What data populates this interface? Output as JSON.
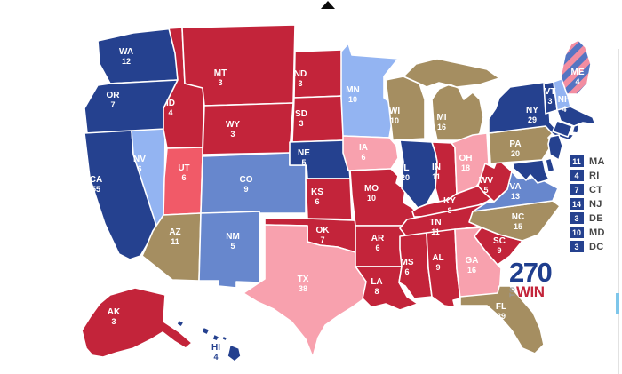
{
  "palette": {
    "safe_dem": "#25418f",
    "likely_dem": "#6787cd",
    "lean_dem": "#93b4f2",
    "tossup": "#a58e61",
    "lean_rep": "#f8a1ae",
    "likely_rep": "#f15a68",
    "safe_rep": "#c3243a",
    "split_stripe_blue": "#5575c2",
    "split_stripe_pink": "#f28da1",
    "state_label_text": "#ffffff",
    "hawaii_label_text": "#25418f",
    "sidebar_label_text": "#454545",
    "logo_blue": "#1f3e8e",
    "logo_red": "#c3243a",
    "logo_gray": "#9a9a9a"
  },
  "scroll_arrow": {
    "name": "scroll-up"
  },
  "map": {
    "states": [
      {
        "abbr": "WA",
        "votes": "12",
        "status": "safe_dem"
      },
      {
        "abbr": "OR",
        "votes": "7",
        "status": "safe_dem"
      },
      {
        "abbr": "CA",
        "votes": "55",
        "status": "safe_dem"
      },
      {
        "abbr": "NV",
        "votes": "6",
        "status": "lean_dem"
      },
      {
        "abbr": "ID",
        "votes": "4",
        "status": "safe_rep"
      },
      {
        "abbr": "MT",
        "votes": "3",
        "status": "safe_rep"
      },
      {
        "abbr": "WY",
        "votes": "3",
        "status": "safe_rep"
      },
      {
        "abbr": "UT",
        "votes": "6",
        "status": "likely_rep"
      },
      {
        "abbr": "CO",
        "votes": "9",
        "status": "likely_dem"
      },
      {
        "abbr": "AZ",
        "votes": "11",
        "status": "tossup"
      },
      {
        "abbr": "NM",
        "votes": "5",
        "status": "likely_dem"
      },
      {
        "abbr": "ND",
        "votes": "3",
        "status": "safe_rep"
      },
      {
        "abbr": "SD",
        "votes": "3",
        "status": "safe_rep"
      },
      {
        "abbr": "NE",
        "votes": "5",
        "status": "safe_dem"
      },
      {
        "abbr": "KS",
        "votes": "6",
        "status": "safe_rep"
      },
      {
        "abbr": "OK",
        "votes": "7",
        "status": "safe_rep"
      },
      {
        "abbr": "TX",
        "votes": "38",
        "status": "lean_rep"
      },
      {
        "abbr": "MN",
        "votes": "10",
        "status": "lean_dem"
      },
      {
        "abbr": "IA",
        "votes": "6",
        "status": "lean_rep"
      },
      {
        "abbr": "MO",
        "votes": "10",
        "status": "safe_rep"
      },
      {
        "abbr": "AR",
        "votes": "6",
        "status": "safe_rep"
      },
      {
        "abbr": "LA",
        "votes": "8",
        "status": "safe_rep"
      },
      {
        "abbr": "WI",
        "votes": "10",
        "status": "tossup"
      },
      {
        "abbr": "MI",
        "votes": "16",
        "status": "tossup"
      },
      {
        "abbr": "IL",
        "votes": "20",
        "status": "safe_dem"
      },
      {
        "abbr": "IN",
        "votes": "11",
        "status": "safe_rep"
      },
      {
        "abbr": "OH",
        "votes": "18",
        "status": "lean_rep"
      },
      {
        "abbr": "KY",
        "votes": "8",
        "status": "safe_rep"
      },
      {
        "abbr": "TN",
        "votes": "11",
        "status": "safe_rep"
      },
      {
        "abbr": "MS",
        "votes": "6",
        "status": "safe_rep"
      },
      {
        "abbr": "AL",
        "votes": "9",
        "status": "safe_rep"
      },
      {
        "abbr": "GA",
        "votes": "16",
        "status": "lean_rep"
      },
      {
        "abbr": "SC",
        "votes": "9",
        "status": "safe_rep"
      },
      {
        "abbr": "NC",
        "votes": "15",
        "status": "tossup"
      },
      {
        "abbr": "VA",
        "votes": "13",
        "status": "likely_dem"
      },
      {
        "abbr": "WV",
        "votes": "5",
        "status": "safe_rep"
      },
      {
        "abbr": "PA",
        "votes": "20",
        "status": "tossup"
      },
      {
        "abbr": "NY",
        "votes": "29",
        "status": "safe_dem"
      },
      {
        "abbr": "VT",
        "votes": "3",
        "status": "safe_dem"
      },
      {
        "abbr": "NH",
        "votes": "4",
        "status": "lean_dem"
      },
      {
        "abbr": "ME",
        "votes": "4",
        "status": "split"
      },
      {
        "abbr": "MA",
        "votes": "11",
        "status": "safe_dem"
      },
      {
        "abbr": "RI",
        "votes": "4",
        "status": "safe_dem"
      },
      {
        "abbr": "CT",
        "votes": "7",
        "status": "safe_dem"
      },
      {
        "abbr": "NJ",
        "votes": "14",
        "status": "safe_dem"
      },
      {
        "abbr": "DE",
        "votes": "3",
        "status": "safe_dem"
      },
      {
        "abbr": "MD",
        "votes": "10",
        "status": "safe_dem"
      },
      {
        "abbr": "DC",
        "votes": "3",
        "status": "safe_dem"
      },
      {
        "abbr": "FL",
        "votes": "29",
        "status": "tossup"
      },
      {
        "abbr": "AK",
        "votes": "3",
        "status": "safe_rep"
      },
      {
        "abbr": "HI",
        "votes": "4",
        "status": "safe_dem"
      }
    ]
  },
  "sidebar": {
    "items": [
      {
        "votes": "11",
        "abbr": "MA"
      },
      {
        "votes": "4",
        "abbr": "RI"
      },
      {
        "votes": "7",
        "abbr": "CT"
      },
      {
        "votes": "14",
        "abbr": "NJ"
      },
      {
        "votes": "3",
        "abbr": "DE"
      },
      {
        "votes": "10",
        "abbr": "MD"
      },
      {
        "votes": "3",
        "abbr": "DC"
      }
    ]
  },
  "logo": {
    "number": "270",
    "to": "TO",
    "win": "WIN"
  }
}
